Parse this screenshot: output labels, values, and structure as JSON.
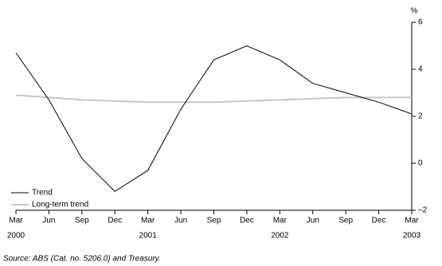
{
  "chart_data": {
    "type": "line",
    "categories": [
      "Mar",
      "Jun",
      "Sep",
      "Dec",
      "Mar",
      "Jun",
      "Sep",
      "Dec",
      "Mar",
      "Jun",
      "Sep",
      "Dec",
      "Mar"
    ],
    "years": [
      "2000",
      null,
      null,
      null,
      "2001",
      null,
      null,
      null,
      "2002",
      null,
      null,
      null,
      "2003"
    ],
    "series": [
      {
        "name": "Trend",
        "color": "#000000",
        "values": [
          4.7,
          2.7,
          0.2,
          -1.2,
          -0.3,
          2.3,
          4.4,
          5.0,
          4.4,
          3.4,
          3.0,
          2.6,
          2.1
        ]
      },
      {
        "name": "Long-term trend",
        "color": "#c8c8c8",
        "values": [
          2.9,
          2.8,
          2.7,
          2.65,
          2.6,
          2.6,
          2.6,
          2.65,
          2.7,
          2.75,
          2.8,
          2.8,
          2.8
        ]
      }
    ],
    "y_unit": "%",
    "ylim": [
      -2,
      6
    ],
    "yticks": [
      {
        "value": -2,
        "label": "–2"
      },
      0,
      2,
      4,
      6
    ],
    "legend": "lower-left",
    "source": "Source: ABS (Cat. no. 5206.0) and  Treasury."
  }
}
